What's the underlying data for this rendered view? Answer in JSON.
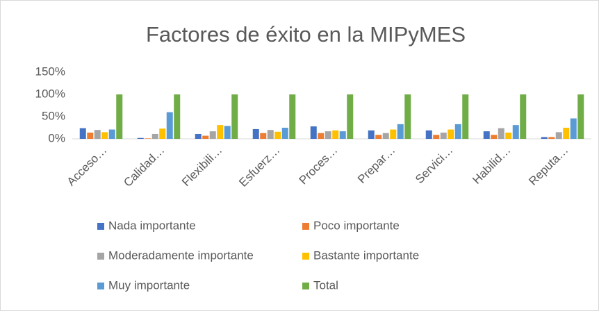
{
  "chart_data": {
    "type": "bar",
    "title": "Factores de éxito en la MIPyMES",
    "categories": [
      "Acceso…",
      "Calidad…",
      "Flexibili…",
      "Esfuerz…",
      "Proces…",
      "Prepar…",
      "Servici…",
      "Habilid…",
      "Reputa…"
    ],
    "series": [
      {
        "name": "Nada importante",
        "color": "#4472c4",
        "values": [
          24,
          2,
          11,
          22,
          28,
          19,
          19,
          17,
          4
        ]
      },
      {
        "name": "Poco importante",
        "color": "#ed7d31",
        "values": [
          14,
          1,
          7,
          13,
          13,
          9,
          9,
          9,
          4
        ]
      },
      {
        "name": "Moderadamente importante",
        "color": "#a5a5a5",
        "values": [
          20,
          11,
          17,
          20,
          17,
          13,
          14,
          24,
          15
        ]
      },
      {
        "name": "Bastante importante",
        "color": "#ffc000",
        "values": [
          15,
          23,
          31,
          16,
          19,
          21,
          21,
          14,
          25
        ]
      },
      {
        "name": "Muy importante",
        "color": "#5b9bd5",
        "values": [
          21,
          60,
          29,
          25,
          17,
          33,
          33,
          31,
          46
        ]
      },
      {
        "name": "Total",
        "color": "#70ad47",
        "values": [
          100,
          100,
          100,
          100,
          100,
          100,
          100,
          100,
          100
        ]
      }
    ],
    "ylim": [
      0,
      150
    ],
    "yticks": [
      {
        "value": 0,
        "label": "0%"
      },
      {
        "value": 50,
        "label": "50%"
      },
      {
        "value": 100,
        "label": "100%"
      },
      {
        "value": 150,
        "label": "150%"
      }
    ],
    "grid": false,
    "legend": "bottom"
  }
}
